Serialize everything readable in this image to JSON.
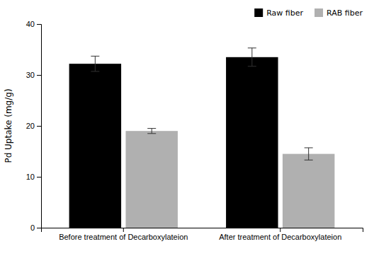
{
  "chart_data": {
    "type": "bar",
    "categories": [
      "Before treatment of Decarboxylateion",
      "After treatment of Decarboxylateion"
    ],
    "series": [
      {
        "name": "Raw fiber",
        "color": "#000000",
        "values": [
          32.2,
          33.5
        ],
        "errors": [
          1.5,
          1.8
        ]
      },
      {
        "name": "RAB fiber",
        "color": "#b0b0b0",
        "values": [
          19.0,
          14.5
        ],
        "errors": [
          0.5,
          1.2
        ]
      }
    ],
    "y_label": "Pd Uptake (mg/g)",
    "ylim": [
      0,
      40
    ],
    "yticks": [
      0,
      10,
      20,
      30,
      40
    ],
    "legend": "upper right"
  }
}
